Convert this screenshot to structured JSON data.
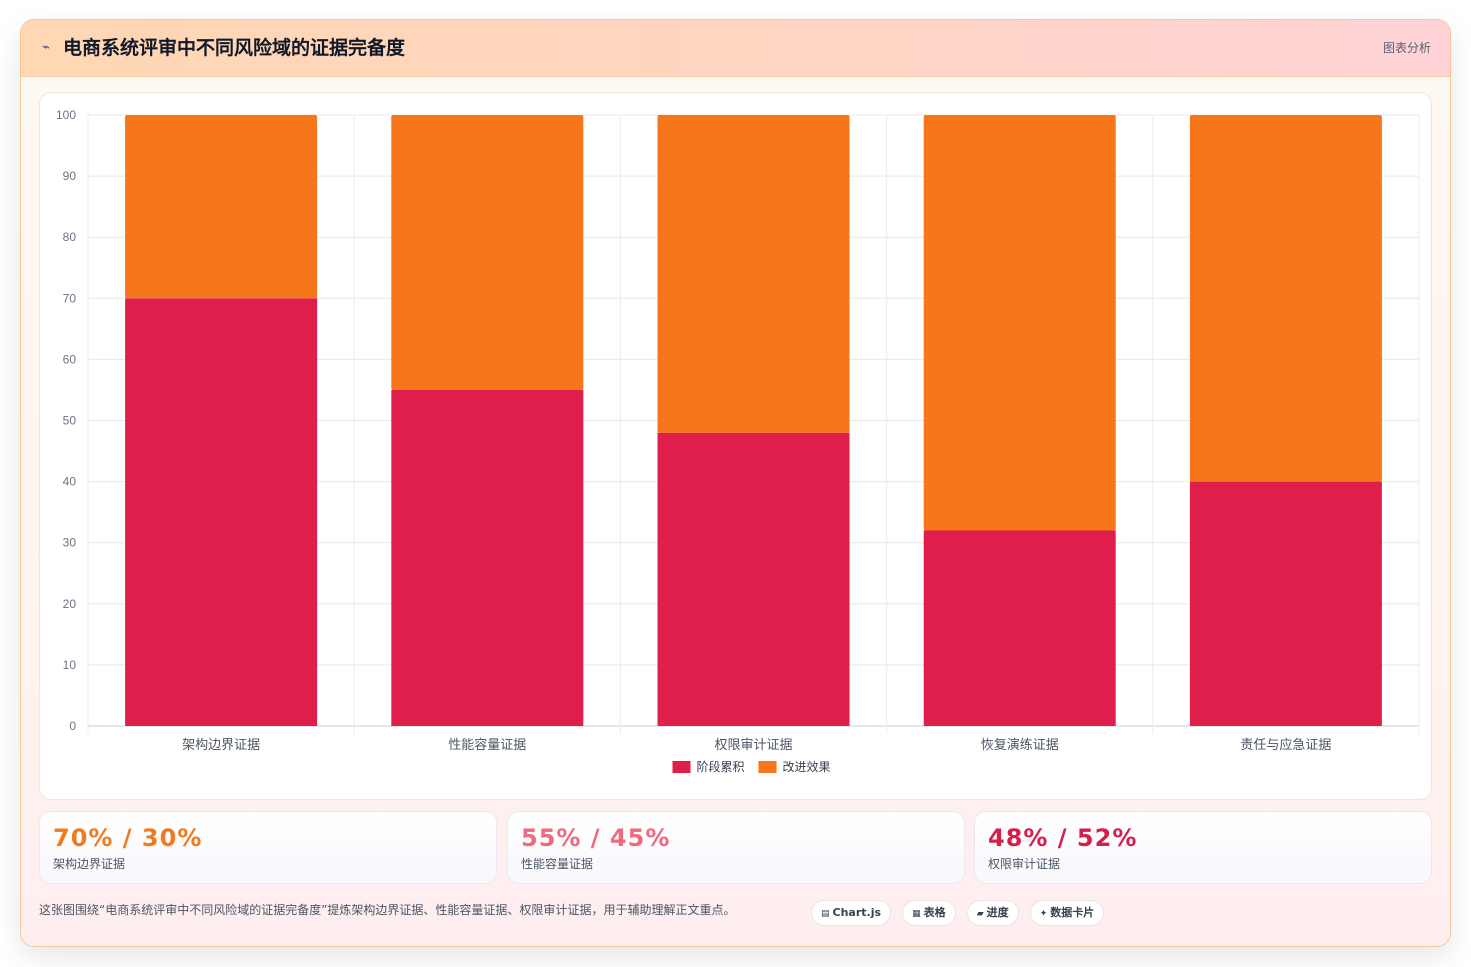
{
  "header": {
    "icon": "chart-line-icon",
    "title": "电商系统评审中不同风险域的证据完备度",
    "action_label": "图表分析"
  },
  "colors": {
    "series_primary": "#df1e4b",
    "series_secondary": "#f6761a",
    "stat_orange": "#f07a1f",
    "stat_pink": "#ef6a7e",
    "stat_crimson": "#d41f4a"
  },
  "chart_data": {
    "type": "bar",
    "stacked": true,
    "title": "",
    "xlabel": "",
    "ylabel": "",
    "ylim": [
      0,
      100
    ],
    "yticks": [
      0,
      10,
      20,
      30,
      40,
      50,
      60,
      70,
      80,
      90,
      100
    ],
    "grid": true,
    "legend_position": "bottom",
    "categories": [
      "架构边界证据",
      "性能容量证据",
      "权限审计证据",
      "恢复演练证据",
      "责任与应急证据"
    ],
    "series": [
      {
        "name": "阶段累积",
        "color": "#df1e4b",
        "values": [
          70,
          55,
          48,
          32,
          40
        ]
      },
      {
        "name": "改进效果",
        "color": "#f6761a",
        "values": [
          30,
          45,
          52,
          68,
          60
        ]
      }
    ]
  },
  "stats": [
    {
      "value": "70% / 30%",
      "label": "架构边界证据",
      "color": "#f07a1f"
    },
    {
      "value": "55% / 45%",
      "label": "性能容量证据",
      "color": "#ef6a7e"
    },
    {
      "value": "48% / 52%",
      "label": "权限审计证据",
      "color": "#d41f4a"
    }
  ],
  "footer": {
    "description": "这张图围绕“电商系统评审中不同风险域的证据完备度”提炼架构边界证据、性能容量证据、权限审计证据，用于辅助理解正文重点。",
    "chips": [
      {
        "label": "Chart.js",
        "icon": "chart-icon"
      },
      {
        "label": "表格",
        "icon": "table-icon"
      },
      {
        "label": "进度",
        "icon": "progress-icon"
      },
      {
        "label": "数据卡片",
        "icon": "sparkle-icon"
      }
    ]
  }
}
